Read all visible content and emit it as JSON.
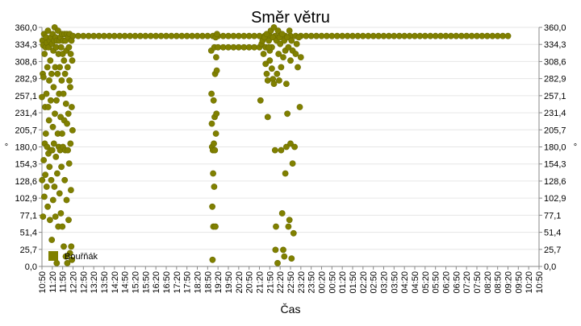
{
  "chart_data": {
    "type": "scatter",
    "title": "Směr větru",
    "xlabel": "Čas",
    "ylabel": "°",
    "ylim": [
      0,
      360
    ],
    "y_ticks": [
      "0,0",
      "25,7",
      "51,4",
      "77,1",
      "102,9",
      "128,6",
      "154,3",
      "180,0",
      "205,7",
      "231,4",
      "257,1",
      "282,9",
      "308,6",
      "334,3",
      "360,0"
    ],
    "x_ticks": [
      "10:50",
      "11:20",
      "11:50",
      "12:20",
      "12:50",
      "13:20",
      "13:50",
      "14:20",
      "14:50",
      "15:20",
      "15:50",
      "16:20",
      "16:50",
      "17:20",
      "17:50",
      "18:20",
      "18:50",
      "19:20",
      "19:50",
      "20:20",
      "20:50",
      "21:20",
      "21:50",
      "22:20",
      "22:50",
      "23:20",
      "23:50",
      "00:20",
      "00:50",
      "01:20",
      "01:50",
      "02:20",
      "02:50",
      "03:20",
      "03:50",
      "04:20",
      "04:50",
      "05:20",
      "05:50",
      "06:20",
      "06:50",
      "07:20",
      "07:50",
      "08:20",
      "08:50",
      "09:20",
      "09:50",
      "10:20",
      "10:50"
    ],
    "grid": true,
    "legend_position": "bottom-left",
    "series": [
      {
        "name": "Bouřňák",
        "color": "#808000",
        "points": [
          [
            0.0,
            255
          ],
          [
            0.05,
            130
          ],
          [
            0.1,
            340
          ],
          [
            0.15,
            290
          ],
          [
            0.2,
            75
          ],
          [
            0.25,
            333
          ],
          [
            0.3,
            285
          ],
          [
            0.35,
            160
          ],
          [
            0.4,
            350
          ],
          [
            0.45,
            105
          ],
          [
            0.5,
            320
          ],
          [
            0.55,
            185
          ],
          [
            0.6,
            240
          ],
          [
            0.65,
            138
          ],
          [
            0.7,
            330
          ],
          [
            0.75,
            200
          ],
          [
            0.8,
            345
          ],
          [
            0.85,
            260
          ],
          [
            0.9,
            120
          ],
          [
            0.95,
            337
          ],
          [
            1.0,
            180
          ],
          [
            1.05,
            300
          ],
          [
            1.1,
            90
          ],
          [
            1.15,
            355
          ],
          [
            1.2,
            240
          ],
          [
            1.25,
            170
          ],
          [
            1.3,
            330
          ],
          [
            1.35,
            220
          ],
          [
            1.4,
            280
          ],
          [
            1.45,
            150
          ],
          [
            1.5,
            340
          ],
          [
            1.55,
            70
          ],
          [
            1.6,
            310
          ],
          [
            1.65,
            175
          ],
          [
            1.7,
            250
          ],
          [
            1.75,
            345
          ],
          [
            1.8,
            130
          ],
          [
            1.85,
            290
          ],
          [
            1.9,
            40
          ],
          [
            1.95,
            335
          ],
          [
            2.0,
            175
          ],
          [
            2.05,
            350
          ],
          [
            2.1,
            210
          ],
          [
            2.15,
            100
          ],
          [
            2.2,
            325
          ],
          [
            2.25,
            270
          ],
          [
            2.3,
            185
          ],
          [
            2.35,
            340
          ],
          [
            2.4,
            120
          ],
          [
            2.45,
            360
          ],
          [
            2.5,
            230
          ],
          [
            2.55,
            300
          ],
          [
            2.6,
            75
          ],
          [
            2.65,
            345
          ],
          [
            2.7,
            165
          ],
          [
            2.75,
            330
          ],
          [
            2.8,
            250
          ],
          [
            2.85,
            5
          ],
          [
            2.9,
            340
          ],
          [
            2.95,
            140
          ],
          [
            3.0,
            290
          ],
          [
            3.05,
            200
          ],
          [
            3.1,
            355
          ],
          [
            3.15,
            60
          ],
          [
            3.2,
            320
          ],
          [
            3.25,
            180
          ],
          [
            3.3,
            260
          ],
          [
            3.35,
            340
          ],
          [
            3.4,
            110
          ],
          [
            3.45,
            300
          ],
          [
            3.5,
            175
          ],
          [
            3.55,
            345
          ],
          [
            3.6,
            225
          ],
          [
            3.65,
            80
          ],
          [
            3.7,
            330
          ],
          [
            3.75,
            150
          ],
          [
            3.8,
            280
          ],
          [
            3.85,
            350
          ],
          [
            3.9,
            200
          ],
          [
            3.95,
            60
          ],
          [
            4.0,
            320
          ],
          [
            4.05,
            180
          ],
          [
            4.1,
            340
          ],
          [
            4.15,
            260
          ],
          [
            4.2,
            30
          ],
          [
            4.25,
            310
          ],
          [
            4.3,
            220
          ],
          [
            4.35,
            350
          ],
          [
            4.4,
            130
          ],
          [
            4.45,
            290
          ],
          [
            4.5,
            175
          ],
          [
            4.55,
            340
          ],
          [
            4.6,
            15
          ],
          [
            4.65,
            245
          ],
          [
            4.7,
            325
          ],
          [
            4.75,
            100
          ],
          [
            4.8,
            350
          ],
          [
            4.85,
            215
          ],
          [
            4.9,
            5
          ],
          [
            4.95,
            300
          ],
          [
            5.0,
            175
          ],
          [
            5.05,
            345
          ],
          [
            5.1,
            230
          ],
          [
            5.15,
            70
          ],
          [
            5.2,
            330
          ],
          [
            5.25,
            155
          ],
          [
            5.3,
            280
          ],
          [
            5.35,
            350
          ],
          [
            5.4,
            20
          ],
          [
            5.45,
            270
          ],
          [
            5.5,
            185
          ],
          [
            5.55,
            320
          ],
          [
            5.6,
            115
          ],
          [
            5.65,
            30
          ],
          [
            5.7,
            340
          ],
          [
            5.75,
            240
          ],
          [
            5.8,
            10
          ],
          [
            5.85,
            310
          ],
          [
            5.9,
            205
          ],
          [
            6.0,
            347
          ],
          [
            7.0,
            347
          ],
          [
            8.0,
            347
          ],
          [
            9.0,
            347
          ],
          [
            10.0,
            347
          ],
          [
            11.0,
            347
          ],
          [
            12.0,
            347
          ],
          [
            13.0,
            347
          ],
          [
            14.0,
            347
          ],
          [
            15.0,
            347
          ],
          [
            16.0,
            347
          ],
          [
            17.0,
            347
          ],
          [
            18.0,
            347
          ],
          [
            19.0,
            347
          ],
          [
            20.0,
            347
          ],
          [
            21.0,
            347
          ],
          [
            22.0,
            347
          ],
          [
            23.0,
            347
          ],
          [
            24.0,
            347
          ],
          [
            25.0,
            347
          ],
          [
            26.0,
            347
          ],
          [
            27.0,
            347
          ],
          [
            28.0,
            347
          ],
          [
            29.0,
            347
          ],
          [
            30.0,
            347
          ],
          [
            31.0,
            347
          ],
          [
            32.0,
            347
          ],
          [
            33.0,
            347
          ],
          [
            34.0,
            347
          ],
          [
            35.0,
            347
          ],
          [
            36.0,
            347
          ],
          [
            37.0,
            347
          ],
          [
            38.0,
            347
          ],
          [
            39.0,
            347
          ],
          [
            40.0,
            347
          ],
          [
            41.0,
            347
          ],
          [
            42.0,
            347
          ],
          [
            43.0,
            347
          ],
          [
            44.0,
            347
          ],
          [
            45.0,
            347
          ],
          [
            46.0,
            347
          ],
          [
            47.0,
            347
          ],
          [
            48.0,
            347
          ],
          [
            49.0,
            347
          ],
          [
            50.0,
            347
          ],
          [
            51.0,
            347
          ],
          [
            52.0,
            347
          ],
          [
            53.0,
            347
          ],
          [
            54.0,
            347
          ],
          [
            55.0,
            347
          ],
          [
            56.0,
            347
          ],
          [
            57.0,
            347
          ],
          [
            58.0,
            347
          ],
          [
            59.0,
            347
          ],
          [
            60.0,
            347
          ],
          [
            61.0,
            347
          ],
          [
            62.0,
            347
          ],
          [
            63.0,
            347
          ],
          [
            64.0,
            347
          ],
          [
            65.0,
            347
          ],
          [
            66.0,
            347
          ],
          [
            67.0,
            347
          ],
          [
            68.0,
            347
          ],
          [
            69.0,
            347
          ],
          [
            70.0,
            347
          ],
          [
            71.0,
            347
          ],
          [
            72.0,
            347
          ],
          [
            73.0,
            347
          ],
          [
            74.0,
            347
          ],
          [
            75.0,
            347
          ],
          [
            76.0,
            347
          ],
          [
            77.0,
            347
          ],
          [
            78.0,
            347
          ],
          [
            79.0,
            347
          ],
          [
            80.0,
            347
          ],
          [
            81.0,
            347
          ],
          [
            82.0,
            347
          ],
          [
            83.0,
            347
          ],
          [
            84.0,
            347
          ],
          [
            85.0,
            347
          ],
          [
            86.0,
            347
          ],
          [
            87.0,
            347
          ],
          [
            88.0,
            347
          ],
          [
            89.0,
            347
          ],
          [
            90.0,
            347
          ],
          [
            32.7,
            325
          ],
          [
            32.75,
            260
          ],
          [
            32.8,
            215
          ],
          [
            32.85,
            180
          ],
          [
            32.9,
            90
          ],
          [
            32.95,
            10
          ],
          [
            33.0,
            175
          ],
          [
            33.05,
            140
          ],
          [
            33.1,
            60
          ],
          [
            33.15,
            250
          ],
          [
            33.2,
            185
          ],
          [
            33.25,
            120
          ],
          [
            33.3,
            330
          ],
          [
            33.35,
            225
          ],
          [
            33.4,
            175
          ],
          [
            33.45,
            290
          ],
          [
            33.5,
            60
          ],
          [
            33.55,
            345
          ],
          [
            33.6,
            200
          ],
          [
            33.65,
            315
          ],
          [
            33.7,
            230
          ],
          [
            33.75,
            295
          ],
          [
            33.8,
            350
          ],
          [
            34.0,
            330
          ],
          [
            35.0,
            330
          ],
          [
            36.0,
            330
          ],
          [
            37.0,
            330
          ],
          [
            38.0,
            330
          ],
          [
            39.0,
            330
          ],
          [
            40.0,
            330
          ],
          [
            41.0,
            330
          ],
          [
            42.0,
            330
          ],
          [
            42.2,
            250
          ],
          [
            42.4,
            335
          ],
          [
            42.6,
            340
          ],
          [
            42.8,
            320
          ],
          [
            43.0,
            345
          ],
          [
            43.2,
            330
          ],
          [
            43.4,
            350
          ],
          [
            43.6,
            225
          ],
          [
            43.8,
            340
          ],
          [
            44.0,
            325
          ],
          [
            44.2,
            355
          ],
          [
            44.4,
            330
          ],
          [
            44.6,
            345
          ],
          [
            44.8,
            360
          ],
          [
            45.0,
            175
          ],
          [
            45.1,
            25
          ],
          [
            45.2,
            60
          ],
          [
            45.3,
            340
          ],
          [
            45.4,
            290
          ],
          [
            45.5,
            5
          ],
          [
            45.6,
            355
          ],
          [
            45.7,
            320
          ],
          [
            45.8,
            280
          ],
          [
            45.9,
            345
          ],
          [
            46.0,
            335
          ],
          [
            46.2,
            300
          ],
          [
            46.4,
            350
          ],
          [
            46.6,
            315
          ],
          [
            46.8,
            340
          ],
          [
            47.0,
            325
          ],
          [
            47.2,
            275
          ],
          [
            47.4,
            345
          ],
          [
            47.6,
            330
          ],
          [
            47.8,
            355
          ],
          [
            48.0,
            310
          ],
          [
            48.2,
            340
          ],
          [
            48.4,
            325
          ],
          [
            46.2,
            175
          ],
          [
            46.4,
            80
          ],
          [
            46.6,
            25
          ],
          [
            46.8,
            15
          ],
          [
            47.0,
            140
          ],
          [
            47.2,
            180
          ],
          [
            47.4,
            230
          ],
          [
            47.6,
            60
          ],
          [
            47.8,
            70
          ],
          [
            48.0,
            185
          ],
          [
            48.2,
            12
          ],
          [
            48.4,
            155
          ],
          [
            48.6,
            50
          ],
          [
            48.8,
            180
          ],
          [
            49.0,
            320
          ],
          [
            49.2,
            335
          ],
          [
            49.4,
            300
          ],
          [
            49.6,
            345
          ],
          [
            49.8,
            240
          ],
          [
            50.0,
            315
          ],
          [
            43.2,
            305
          ],
          [
            43.4,
            290
          ],
          [
            43.6,
            280
          ],
          [
            43.8,
            330
          ],
          [
            44.0,
            310
          ],
          [
            44.4,
            298
          ],
          [
            44.6,
            282
          ],
          [
            44.8,
            275
          ]
        ]
      }
    ]
  }
}
